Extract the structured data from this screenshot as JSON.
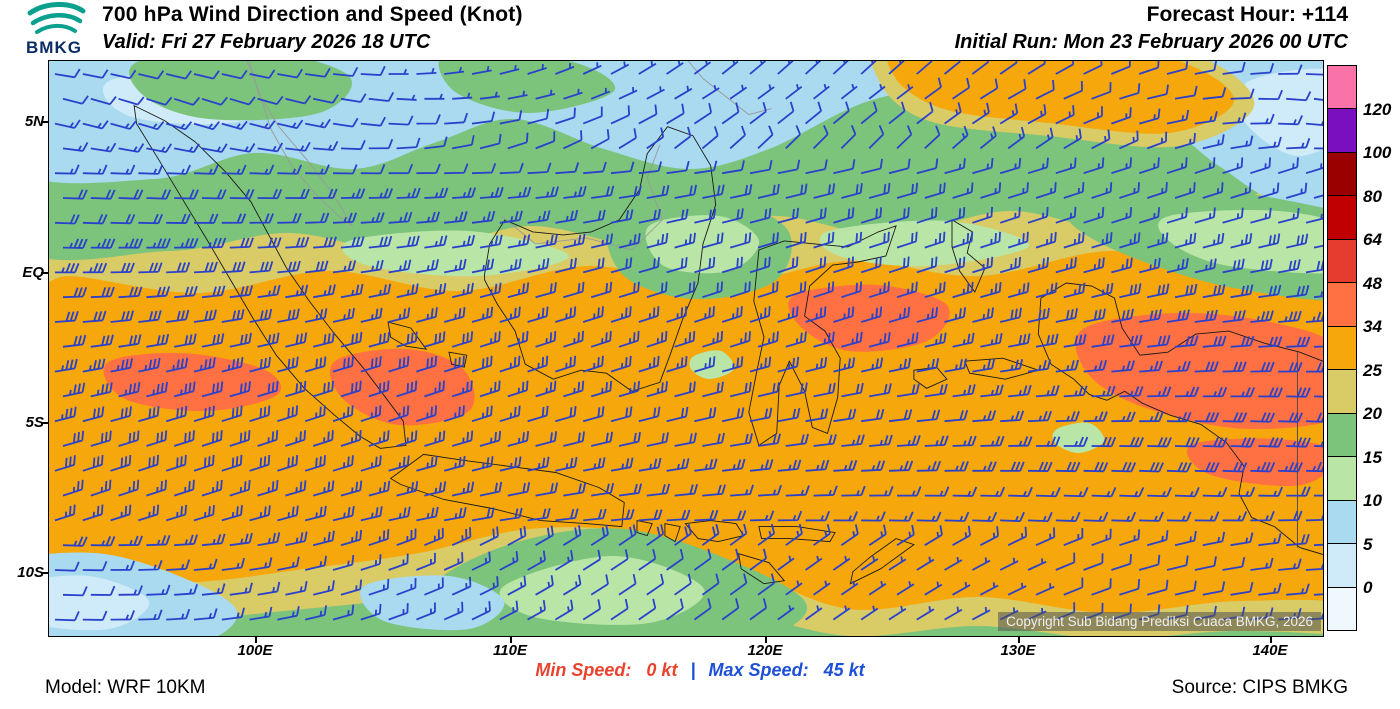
{
  "header": {
    "logo_text": "BMKG",
    "title": "700 hPa Wind Direction and Speed (Knot)",
    "valid": "Valid: Fri 27 February 2026 18 UTC",
    "forecast_hour": "Forecast Hour: +114",
    "initial_run": "Initial Run: Mon 23 February 2026 00 UTC"
  },
  "map": {
    "lat_labels": [
      "5N",
      "EQ",
      "5S",
      "10S"
    ],
    "lon_labels": [
      "100E",
      "110E",
      "120E",
      "130E",
      "140E"
    ],
    "copyright": "Copyright Sub Bidang Prediksi Cuaca BMKG, 2026",
    "barb_color": "#2a41cc"
  },
  "legend": {
    "values": [
      "120",
      "100",
      "80",
      "64",
      "48",
      "34",
      "25",
      "20",
      "15",
      "10",
      "5",
      "0"
    ],
    "colors": [
      "#f973a8",
      "#7a0fc0",
      "#9a0000",
      "#c00000",
      "#e63c2f",
      "#ff7043",
      "#f6a70b",
      "#d9cb66",
      "#7cc47c",
      "#b9e6a6",
      "#a9daf0",
      "#cfeaf8",
      "#eef8fd"
    ]
  },
  "footer": {
    "model": "Model: WRF 10KM",
    "min_speed_label": "Min Speed:",
    "min_speed_value": "0 kt",
    "separator": "|",
    "max_speed_label": "Max Speed:",
    "max_speed_value": "45 kt",
    "source": "Source: CIPS BMKG"
  }
}
